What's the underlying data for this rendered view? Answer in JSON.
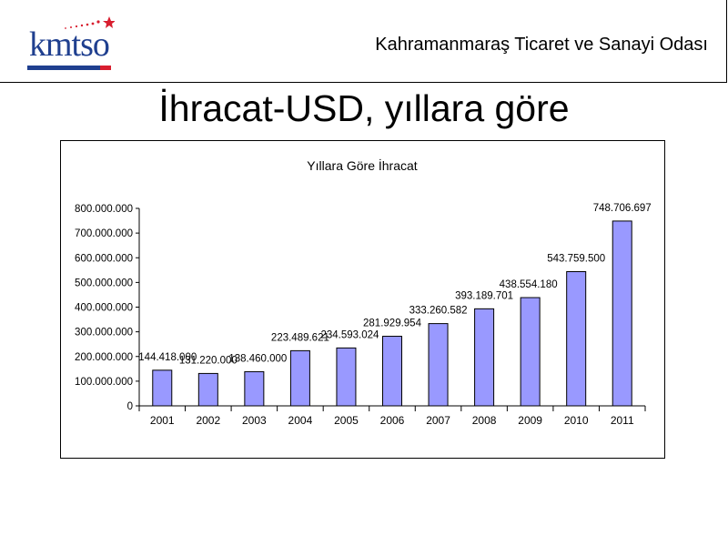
{
  "header": {
    "logo_text": "kmtso",
    "org_name": "Kahramanmaraş Ticaret ve Sanayi Odası"
  },
  "page": {
    "title": "İhracat-USD, yıllara göre"
  },
  "colors": {
    "bar_fill": "#9999ff",
    "bar_stroke": "#000000",
    "logo_blue": "#1f3f8f",
    "logo_red": "#d81e2f"
  },
  "chart_data": {
    "type": "bar",
    "title": "Yıllara Göre İhracat",
    "xlabel": "",
    "ylabel": "",
    "categories": [
      "2001",
      "2002",
      "2003",
      "2004",
      "2005",
      "2006",
      "2007",
      "2008",
      "2009",
      "2010",
      "2011"
    ],
    "values": [
      144418000,
      131220000,
      138460000,
      223489621,
      234593024,
      281929954,
      333260582,
      393189701,
      438554180,
      543759500,
      748706697
    ],
    "value_labels": [
      "144.418.000",
      "131.220.000",
      "138.460.000",
      "223.489.621",
      "234.593.024",
      "281.929.954",
      "333.260.582",
      "393.189.701",
      "438.554.180",
      "543.759.500",
      "748.706.697"
    ],
    "ylim": [
      0,
      800000000
    ],
    "y_ticks": [
      0,
      100000000,
      200000000,
      300000000,
      400000000,
      500000000,
      600000000,
      700000000,
      800000000
    ],
    "y_tick_labels": [
      "0",
      "100.000.000",
      "200.000.000",
      "300.000.000",
      "400.000.000",
      "500.000.000",
      "600.000.000",
      "700.000.000",
      "800.000.000"
    ],
    "grid": false,
    "legend": "none"
  }
}
